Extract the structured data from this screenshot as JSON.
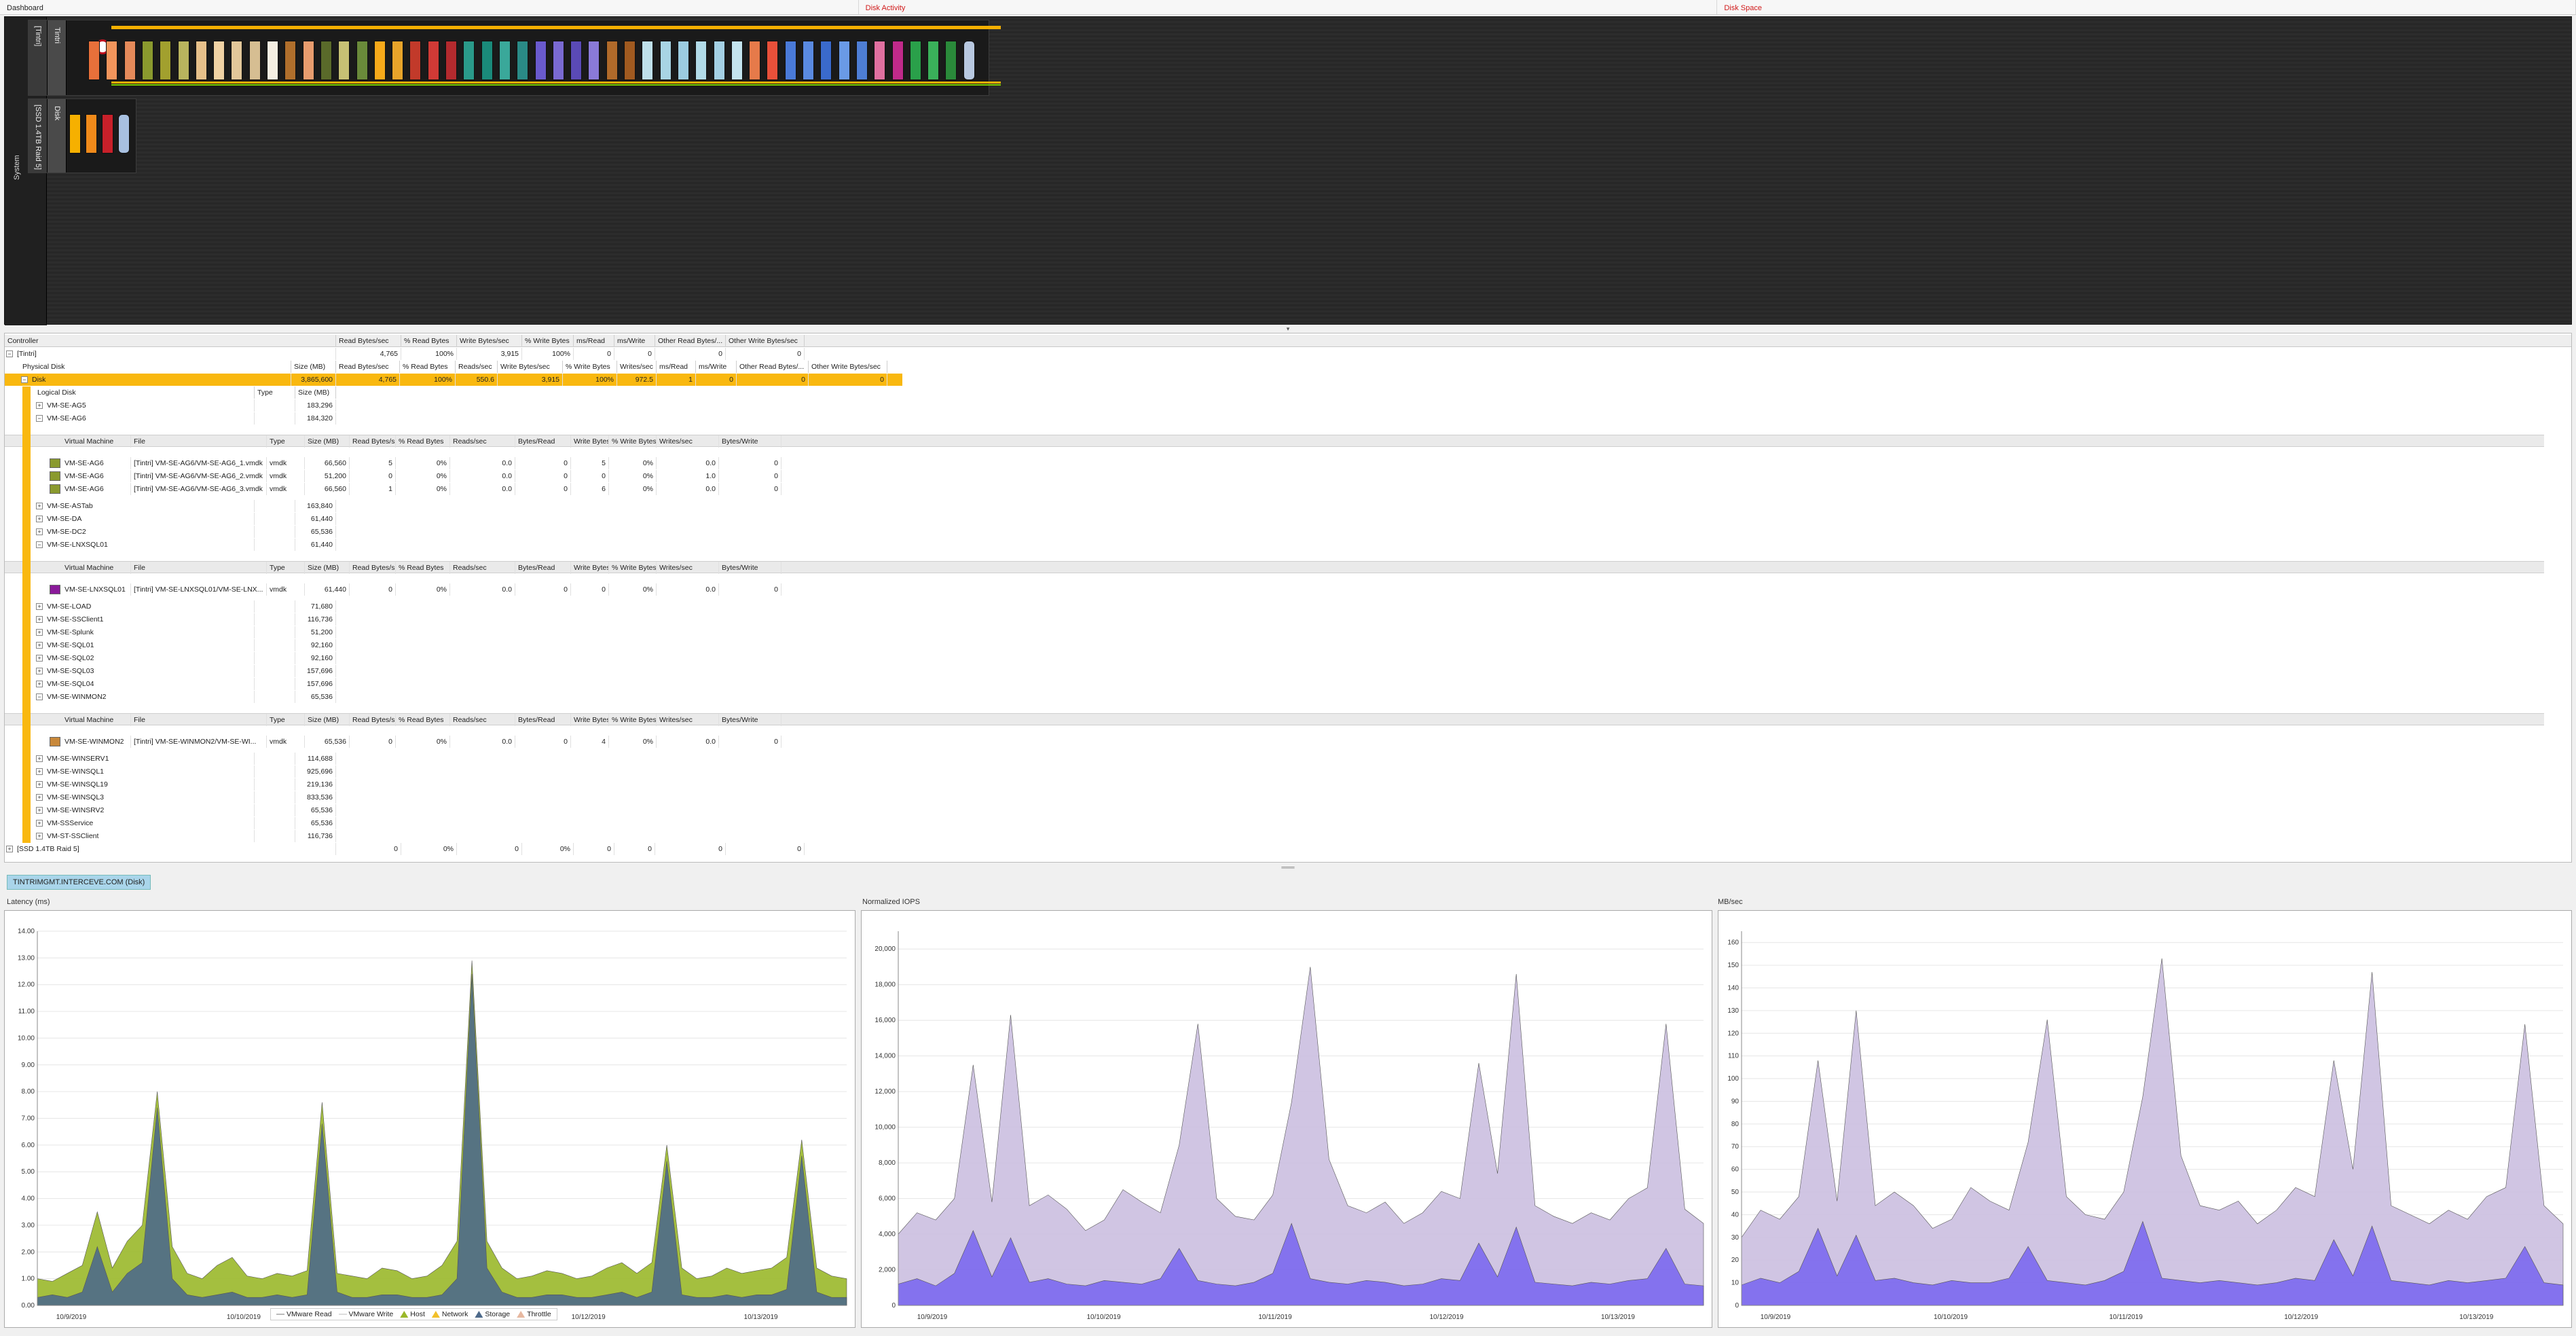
{
  "tabs": [
    "Dashboard",
    "Disk Activity",
    "Disk Space"
  ],
  "diagram": {
    "system_label": "System",
    "group1_tag": "[Tintri]",
    "group1_tag2": "Tintri",
    "group2_tag": "[SSD 1.4TB Raid 5]",
    "group2_tag2": "Disk",
    "vm_colors": [
      "#e8703a",
      "#f2955c",
      "#e58a5a",
      "#8a9a2e",
      "#a2a02e",
      "#b9b45e",
      "#e6c08a",
      "#f0d2a4",
      "#e2c79a",
      "#d6be92",
      "#f5efe2",
      "#b06f2c",
      "#e89c6e",
      "#5a6a2a",
      "#c7c074",
      "#6a8a3a",
      "#f6a91a",
      "#e8a42a",
      "#c23a2a",
      "#d03a36",
      "#b42a2e",
      "#2a9a8a",
      "#1a8a7a",
      "#3aa89a",
      "#2a8a86",
      "#6a5acd",
      "#7a6ad2",
      "#5a4ab6",
      "#8a7ad8",
      "#b06a2a",
      "#a05a20",
      "#bfe0ea",
      "#a8d4e4",
      "#9ccce0",
      "#b2dbe8",
      "#a4d0e4",
      "#c4e4ee",
      "#e67a4a",
      "#e8503a",
      "#4a7ad8",
      "#5a8ae0",
      "#3a6acc",
      "#6a9ae6",
      "#4e7ed4",
      "#e070a0",
      "#c02a8a",
      "#2aa04a",
      "#3ab05a",
      "#2a8a3a",
      "#b8c8e0"
    ],
    "disk_colors": [
      "#f6b000",
      "#f08a1a",
      "#c8202a",
      "#a8c0e0"
    ]
  },
  "grid": {
    "controller_header": [
      "Controller",
      "Read Bytes/sec",
      "% Read Bytes",
      "Write Bytes/sec",
      "% Write Bytes",
      "ms/Read",
      "ms/Write",
      "Other Read Bytes/...",
      "Other Write Bytes/sec"
    ],
    "tintri_row": {
      "name": "[Tintri]",
      "values": [
        "4,765",
        "100%",
        "3,915",
        "100%",
        "0",
        "0",
        "0",
        "0"
      ]
    },
    "physical_header": [
      "Physical Disk",
      "Size (MB)",
      "Read Bytes/sec",
      "% Read Bytes",
      "Reads/sec",
      "Write Bytes/sec",
      "% Write Bytes",
      "Writes/sec",
      "ms/Read",
      "ms/Write",
      "Other Read Bytes/...",
      "Other Write Bytes/sec"
    ],
    "disk_row": {
      "name": "Disk",
      "values": [
        "3,865,600",
        "4,765",
        "100%",
        "550.6",
        "3,915",
        "100%",
        "972.5",
        "1",
        "0",
        "0",
        "0"
      ]
    },
    "logical_header": [
      "Logical Disk",
      "Type",
      "Size (MB)"
    ],
    "vm_header": [
      "Virtual Machine",
      "File",
      "Type",
      "Size (MB)",
      "Read Bytes/sec",
      "% Read Bytes",
      "Reads/sec",
      "Bytes/Read",
      "Write Bytes/sec",
      "% Write Bytes",
      "Writes/sec",
      "Bytes/Write"
    ],
    "logical_rows_a": [
      {
        "name": "VM-SE-AG5",
        "size": "183,296"
      },
      {
        "name": "VM-SE-AG6",
        "size": "184,320"
      }
    ],
    "ag6_files": [
      {
        "vm": "VM-SE-AG6",
        "file": "[Tintri] VM-SE-AG6/VM-SE-AG6_1.vmdk",
        "type": "vmdk",
        "size": "66,560",
        "rbs": "5",
        "prb": "0%",
        "rps": "0.0",
        "bpr": "0",
        "wbs": "5",
        "pwb": "0%",
        "wps": "0.0",
        "bpw": "0",
        "color": "#8a9a2e"
      },
      {
        "vm": "VM-SE-AG6",
        "file": "[Tintri] VM-SE-AG6/VM-SE-AG6_2.vmdk",
        "type": "vmdk",
        "size": "51,200",
        "rbs": "0",
        "prb": "0%",
        "rps": "0.0",
        "bpr": "0",
        "wbs": "0",
        "pwb": "0%",
        "wps": "1.0",
        "bpw": "0",
        "color": "#8a9a2e"
      },
      {
        "vm": "VM-SE-AG6",
        "file": "[Tintri] VM-SE-AG6/VM-SE-AG6_3.vmdk",
        "type": "vmdk",
        "size": "66,560",
        "rbs": "1",
        "prb": "0%",
        "rps": "0.0",
        "bpr": "0",
        "wbs": "6",
        "pwb": "0%",
        "wps": "0.0",
        "bpw": "0",
        "color": "#8a9a2e"
      }
    ],
    "logical_rows_b": [
      {
        "name": "VM-SE-ASTab",
        "size": "163,840"
      },
      {
        "name": "VM-SE-DA",
        "size": "61,440"
      },
      {
        "name": "VM-SE-DC2",
        "size": "65,536"
      },
      {
        "name": "VM-SE-LNXSQL01",
        "size": "61,440"
      }
    ],
    "lnx_files": [
      {
        "vm": "VM-SE-LNXSQL01",
        "file": "[Tintri] VM-SE-LNXSQL01/VM-SE-LNX...",
        "type": "vmdk",
        "size": "61,440",
        "rbs": "0",
        "prb": "0%",
        "rps": "0.0",
        "bpr": "0",
        "wbs": "0",
        "pwb": "0%",
        "wps": "0.0",
        "bpw": "0",
        "color": "#8a1a9a"
      }
    ],
    "logical_rows_c": [
      {
        "name": "VM-SE-LOAD",
        "size": "71,680"
      },
      {
        "name": "VM-SE-SSClient1",
        "size": "116,736"
      },
      {
        "name": "VM-SE-Splunk",
        "size": "51,200"
      },
      {
        "name": "VM-SE-SQL01",
        "size": "92,160"
      },
      {
        "name": "VM-SE-SQL02",
        "size": "92,160"
      },
      {
        "name": "VM-SE-SQL03",
        "size": "157,696"
      },
      {
        "name": "VM-SE-SQL04",
        "size": "157,696"
      },
      {
        "name": "VM-SE-WINMON2",
        "size": "65,536"
      }
    ],
    "winmon_files": [
      {
        "vm": "VM-SE-WINMON2",
        "file": "[Tintri] VM-SE-WINMON2/VM-SE-WI...",
        "type": "vmdk",
        "size": "65,536",
        "rbs": "0",
        "prb": "0%",
        "rps": "0.0",
        "bpr": "0",
        "wbs": "4",
        "pwb": "0%",
        "wps": "0.0",
        "bpw": "0",
        "color": "#c8883a"
      }
    ],
    "logical_rows_d": [
      {
        "name": "VM-SE-WINSERV1",
        "size": "114,688"
      },
      {
        "name": "VM-SE-WINSQL1",
        "size": "925,696"
      },
      {
        "name": "VM-SE-WINSQL19",
        "size": "219,136"
      },
      {
        "name": "VM-SE-WINSQL3",
        "size": "833,536"
      },
      {
        "name": "VM-SE-WINSRV2",
        "size": "65,536"
      },
      {
        "name": "VM-SSService",
        "size": "65,536"
      },
      {
        "name": "VM-ST-SSClient",
        "size": "116,736"
      }
    ],
    "ssd_row": {
      "name": "[SSD 1.4TB Raid 5]",
      "values": [
        "0",
        "0%",
        "0",
        "0%",
        "0",
        "0",
        "0",
        "0"
      ]
    }
  },
  "host_tab": "TINTRIMGMT.INTERCEVE.COM (Disk)",
  "panels": [
    "Latency (ms)",
    "Normalized IOPS",
    "MB/sec"
  ],
  "chart_data": [
    {
      "type": "area",
      "title": "Latency (ms)",
      "x_labels": [
        "10/9/2019",
        "10/10/2019",
        "10/11/2019",
        "10/12/2019",
        "10/13/2019"
      ],
      "ylim": [
        0,
        14
      ],
      "y_ticks": [
        "0.00",
        "1.00",
        "2.00",
        "3.00",
        "4.00",
        "5.00",
        "6.00",
        "7.00",
        "8.00",
        "9.00",
        "10.00",
        "11.00",
        "12.00",
        "13.00",
        "14.00"
      ],
      "legend": [
        "VMware Read",
        "VMware Write",
        "Host",
        "Network",
        "Storage",
        "Throttle"
      ],
      "series": [
        {
          "name": "Storage",
          "color": "#4e6a8a",
          "values": [
            0.3,
            0.4,
            0.3,
            0.5,
            2.2,
            0.5,
            1.2,
            1.6,
            7.4,
            1.0,
            0.4,
            0.3,
            0.4,
            0.5,
            0.3,
            0.3,
            0.4,
            0.3,
            0.4,
            6.8,
            0.5,
            0.3,
            0.3,
            0.4,
            0.4,
            0.3,
            0.3,
            0.4,
            1.0,
            12.4,
            1.4,
            0.5,
            0.3,
            0.3,
            0.4,
            0.4,
            0.3,
            0.3,
            0.4,
            0.5,
            0.3,
            0.5,
            5.4,
            0.4,
            0.3,
            0.3,
            0.4,
            0.3,
            0.4,
            0.4,
            0.6,
            5.6,
            0.5,
            0.3,
            0.3
          ]
        },
        {
          "name": "Host",
          "color": "#9ab82a",
          "values": [
            1.0,
            0.9,
            1.2,
            1.5,
            3.5,
            1.4,
            2.4,
            3.0,
            8.0,
            2.2,
            1.2,
            1.0,
            1.5,
            1.8,
            1.1,
            1.0,
            1.2,
            1.1,
            1.3,
            7.6,
            1.2,
            1.1,
            1.0,
            1.4,
            1.3,
            1.0,
            1.1,
            1.5,
            2.4,
            12.9,
            2.4,
            1.4,
            1.0,
            1.1,
            1.3,
            1.2,
            1.0,
            1.1,
            1.4,
            1.6,
            1.2,
            1.6,
            6.0,
            1.4,
            1.0,
            1.1,
            1.4,
            1.2,
            1.3,
            1.4,
            1.8,
            6.2,
            1.4,
            1.1,
            1.0
          ]
        }
      ]
    },
    {
      "type": "area",
      "title": "Normalized IOPS",
      "x_labels": [
        "10/9/2019",
        "10/10/2019",
        "10/11/2019",
        "10/12/2019",
        "10/13/2019"
      ],
      "ylim": [
        0,
        21000
      ],
      "y_ticks": [
        "0",
        "2,000",
        "4,000",
        "6,000",
        "8,000",
        "10,000",
        "12,000",
        "14,000",
        "16,000",
        "18,000",
        "20,000"
      ],
      "series": [
        {
          "name": "",
          "color": "#7b68ee",
          "values": [
            1200,
            1500,
            1100,
            1800,
            4200,
            1600,
            3800,
            1300,
            1500,
            1200,
            1100,
            1400,
            1300,
            1200,
            1500,
            3200,
            1400,
            1200,
            1100,
            1300,
            1800,
            4600,
            1500,
            1300,
            1200,
            1400,
            1300,
            1100,
            1200,
            1500,
            1400,
            3500,
            1600,
            4400,
            1300,
            1200,
            1100,
            1300,
            1200,
            1400,
            1500,
            3200,
            1200,
            1100
          ]
        },
        {
          "name": "",
          "color": "#cbbfe0",
          "values": [
            4000,
            5200,
            4800,
            6000,
            13500,
            5800,
            16300,
            5600,
            6200,
            5400,
            4200,
            4800,
            6500,
            5800,
            5200,
            9000,
            15800,
            6000,
            5000,
            4800,
            6200,
            11400,
            19000,
            8200,
            5600,
            5200,
            5800,
            4600,
            5200,
            6400,
            6000,
            13600,
            7400,
            18600,
            5600,
            5000,
            4600,
            5200,
            4800,
            6000,
            6600,
            15800,
            5400,
            4600
          ]
        }
      ]
    },
    {
      "type": "area",
      "title": "MB/sec",
      "x_labels": [
        "10/9/2019",
        "10/10/2019",
        "10/11/2019",
        "10/12/2019",
        "10/13/2019"
      ],
      "ylim": [
        0,
        165
      ],
      "y_ticks": [
        "0",
        "10",
        "20",
        "30",
        "40",
        "50",
        "60",
        "70",
        "80",
        "90",
        "100",
        "110",
        "120",
        "130",
        "140",
        "150",
        "160"
      ],
      "series": [
        {
          "name": "",
          "color": "#7b68ee",
          "values": [
            9,
            12,
            10,
            15,
            34,
            13,
            31,
            11,
            12,
            10,
            9,
            11,
            10,
            10,
            12,
            26,
            11,
            10,
            9,
            11,
            15,
            37,
            12,
            11,
            10,
            11,
            10,
            9,
            10,
            12,
            11,
            29,
            13,
            35,
            11,
            10,
            9,
            11,
            10,
            11,
            12,
            26,
            10,
            9
          ]
        },
        {
          "name": "",
          "color": "#cbbfe0",
          "values": [
            30,
            42,
            38,
            48,
            108,
            46,
            130,
            44,
            50,
            44,
            34,
            38,
            52,
            46,
            42,
            72,
            126,
            48,
            40,
            38,
            50,
            92,
            153,
            66,
            44,
            42,
            46,
            36,
            42,
            52,
            48,
            108,
            60,
            147,
            44,
            40,
            36,
            42,
            38,
            48,
            52,
            124,
            44,
            36
          ]
        }
      ]
    }
  ]
}
